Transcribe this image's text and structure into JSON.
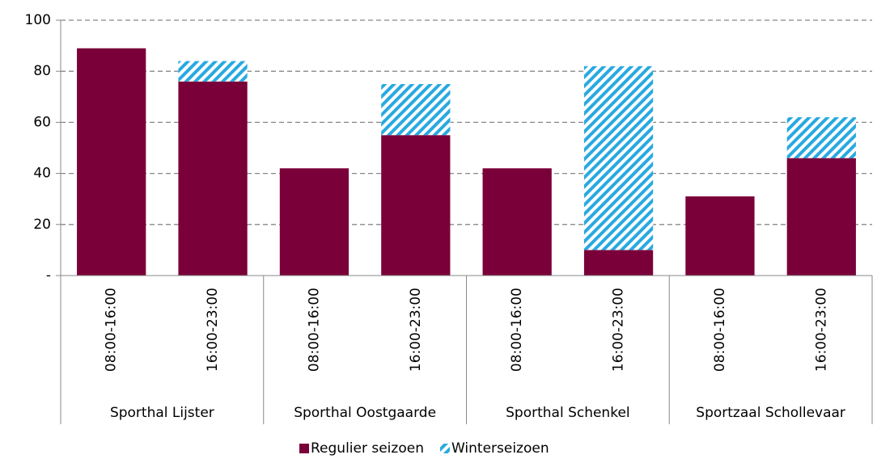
{
  "chart_data": {
    "type": "stacked_bar",
    "categories": [
      "08:00-16:00",
      "16:00-23:00",
      "08:00-16:00",
      "16:00-23:00",
      "08:00-16:00",
      "16:00-23:00",
      "08:00-16:00",
      "16:00-23:00"
    ],
    "groups": [
      "Sporthal Lijster",
      "Sporthal Oostgaarde",
      "Sporthal Schenkel",
      "Sportzaal Schollevaar"
    ],
    "series": [
      {
        "name": "Regulier seizoen",
        "color": "#7a0039",
        "values": [
          89,
          76,
          42,
          55,
          42,
          10,
          31,
          46
        ]
      },
      {
        "name": "Winterseizoen",
        "color": "#29a9e0",
        "pattern": "diagonal-stripes",
        "values": [
          null,
          8,
          null,
          20,
          null,
          72,
          null,
          16
        ]
      }
    ],
    "ylim": [
      0,
      100
    ],
    "yticks": [
      {
        "value": 0,
        "label": "-"
      },
      20,
      40,
      60,
      80,
      100
    ],
    "grid": true,
    "legend": "bottom"
  }
}
